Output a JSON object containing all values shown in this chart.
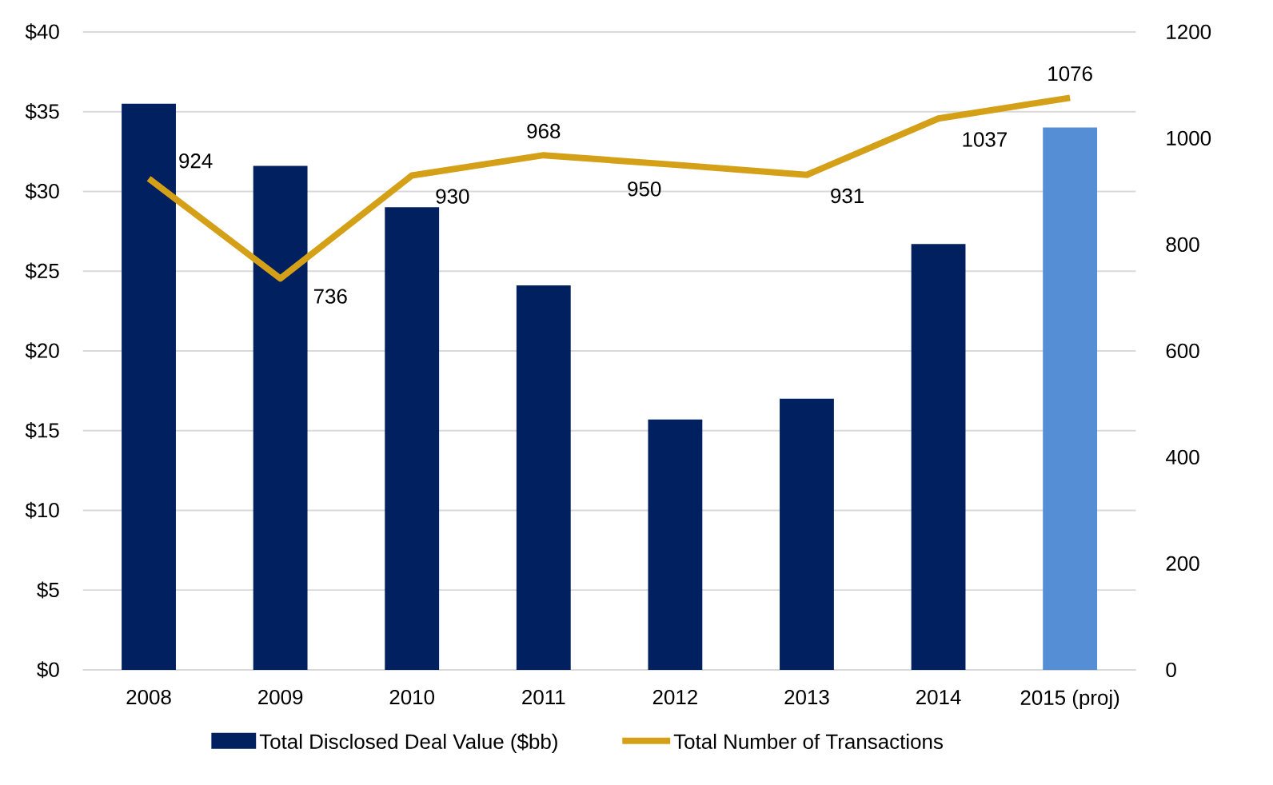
{
  "chart_data": {
    "type": "bar",
    "categories": [
      "2008",
      "2009",
      "2010",
      "2011",
      "2012",
      "2013",
      "2014",
      "2015 (proj)"
    ],
    "series": [
      {
        "name": "Total Disclosed Deal Value ($bb)",
        "color": "#002060",
        "colors": [
          "#002060",
          "#002060",
          "#002060",
          "#002060",
          "#002060",
          "#002060",
          "#002060",
          "#558ed5"
        ],
        "values": [
          35.5,
          31.6,
          29.0,
          24.1,
          15.7,
          17.0,
          26.7,
          34.0
        ]
      },
      {
        "name": "Total Number of Transactions",
        "type": "line",
        "axis": "y2",
        "color": "#d4a017",
        "line_style": "solid",
        "marker": "none",
        "values": [
          924,
          736,
          930,
          968,
          950,
          931,
          1037,
          1076
        ],
        "value_labels": [
          "924",
          "736",
          "930",
          "968",
          "950",
          "931",
          "1037",
          "1076"
        ]
      }
    ],
    "ylim": [
      0,
      40
    ],
    "yticks": [
      {
        "value": 0,
        "label": "$0"
      },
      {
        "value": 5,
        "label": "$5"
      },
      {
        "value": 10,
        "label": "$10"
      },
      {
        "value": 15,
        "label": "$15"
      },
      {
        "value": 20,
        "label": "$20"
      },
      {
        "value": 25,
        "label": "$25"
      },
      {
        "value": 30,
        "label": "$30"
      },
      {
        "value": 35,
        "label": "$35"
      },
      {
        "value": 40,
        "label": "$40"
      }
    ],
    "y2lim": [
      0,
      1200
    ],
    "y2ticks": [
      0,
      200,
      400,
      600,
      800,
      1000,
      1200
    ],
    "grid": "y",
    "legend": "bottom"
  }
}
